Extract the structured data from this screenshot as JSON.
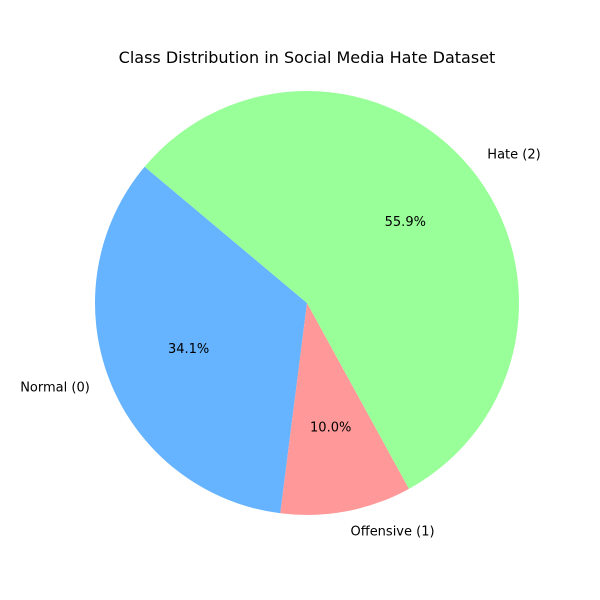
{
  "chart_data": {
    "type": "pie",
    "title": "Class Distribution in Social Media Hate Dataset",
    "start_angle_deg": 140,
    "direction": "counterclockwise",
    "legend": "none",
    "slices": [
      {
        "label": "Normal (0)",
        "value": 34.1,
        "pct_label": "34.1%",
        "color": "#66b3ff"
      },
      {
        "label": "Offensive (1)",
        "value": 10.0,
        "pct_label": "10.0%",
        "color": "#ff9999"
      },
      {
        "label": "Hate (2)",
        "value": 55.9,
        "pct_label": "55.9%",
        "color": "#99ff99"
      }
    ]
  }
}
